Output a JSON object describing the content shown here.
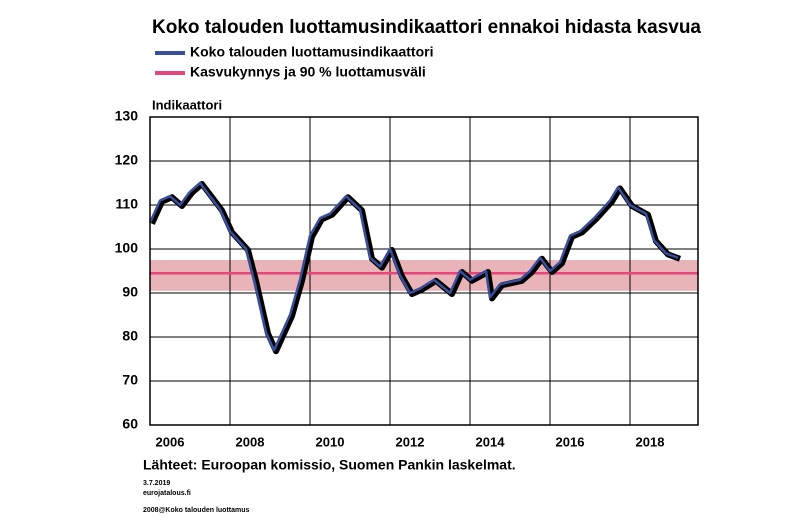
{
  "chart_data": {
    "type": "line",
    "title": "Koko talouden luottamusindikaattori ennakoi hidasta kasvua",
    "y_label": "Indikaattori",
    "source": "Lähteet: Euroopan komissio, Suomen Pankin laskelmat.",
    "footnotes": [
      "3.7.2019",
      "eurojatalous.fi",
      "2008@Koko talouden luottamus"
    ],
    "x": [
      2006.0,
      2006.25,
      2006.5,
      2006.75,
      2007.0,
      2007.25,
      2007.5,
      2007.75,
      2008.0,
      2008.4,
      2008.6,
      2008.9,
      2009.1,
      2009.5,
      2009.75,
      2010.0,
      2010.25,
      2010.5,
      2010.9,
      2011.25,
      2011.5,
      2011.75,
      2012.0,
      2012.25,
      2012.5,
      2012.75,
      2013.1,
      2013.5,
      2013.75,
      2014.0,
      2014.4,
      2014.5,
      2014.75,
      2015.25,
      2015.5,
      2015.75,
      2016.0,
      2016.25,
      2016.5,
      2016.75,
      2017.1,
      2017.5,
      2017.7,
      2018.0,
      2018.4,
      2018.6,
      2018.9,
      2019.2
    ],
    "series": [
      {
        "name": "Koko talouden luottamusindikaattori",
        "color": "#3a4f9c",
        "shadow_color": "#000000",
        "values": [
          106,
          111,
          112,
          110,
          113,
          115,
          112,
          109,
          104,
          100,
          93,
          81,
          77,
          85,
          93,
          103,
          107,
          108,
          112,
          109,
          98,
          96,
          100,
          94,
          90,
          91,
          93,
          90,
          95,
          93,
          95,
          89,
          92,
          93,
          95,
          98,
          95,
          97,
          103,
          104,
          107,
          111,
          114,
          110,
          108,
          102,
          99,
          98
        ]
      }
    ],
    "band": {
      "name": "Kasvukynnys ja 90 % luottamusväli",
      "center": 94.5,
      "low": 90.5,
      "high": 97.5,
      "color": "#e8457a",
      "fill": "#e8b4b8"
    },
    "xlim": [
      2006,
      2019.7
    ],
    "xticks": [
      {
        "value": 2006.5,
        "label": "2006"
      },
      {
        "value": 2008.5,
        "label": "2008"
      },
      {
        "value": 2010.5,
        "label": "2010"
      },
      {
        "value": 2012.5,
        "label": "2012"
      },
      {
        "value": 2014.5,
        "label": "2014"
      },
      {
        "value": 2016.5,
        "label": "2016"
      },
      {
        "value": 2018.5,
        "label": "2018"
      }
    ],
    "xgrid": [
      2008,
      2010,
      2012,
      2014,
      2016,
      2018
    ],
    "ylim": [
      60,
      130
    ],
    "yticks": [
      60,
      70,
      80,
      90,
      100,
      110,
      120,
      130
    ],
    "grid": true
  }
}
